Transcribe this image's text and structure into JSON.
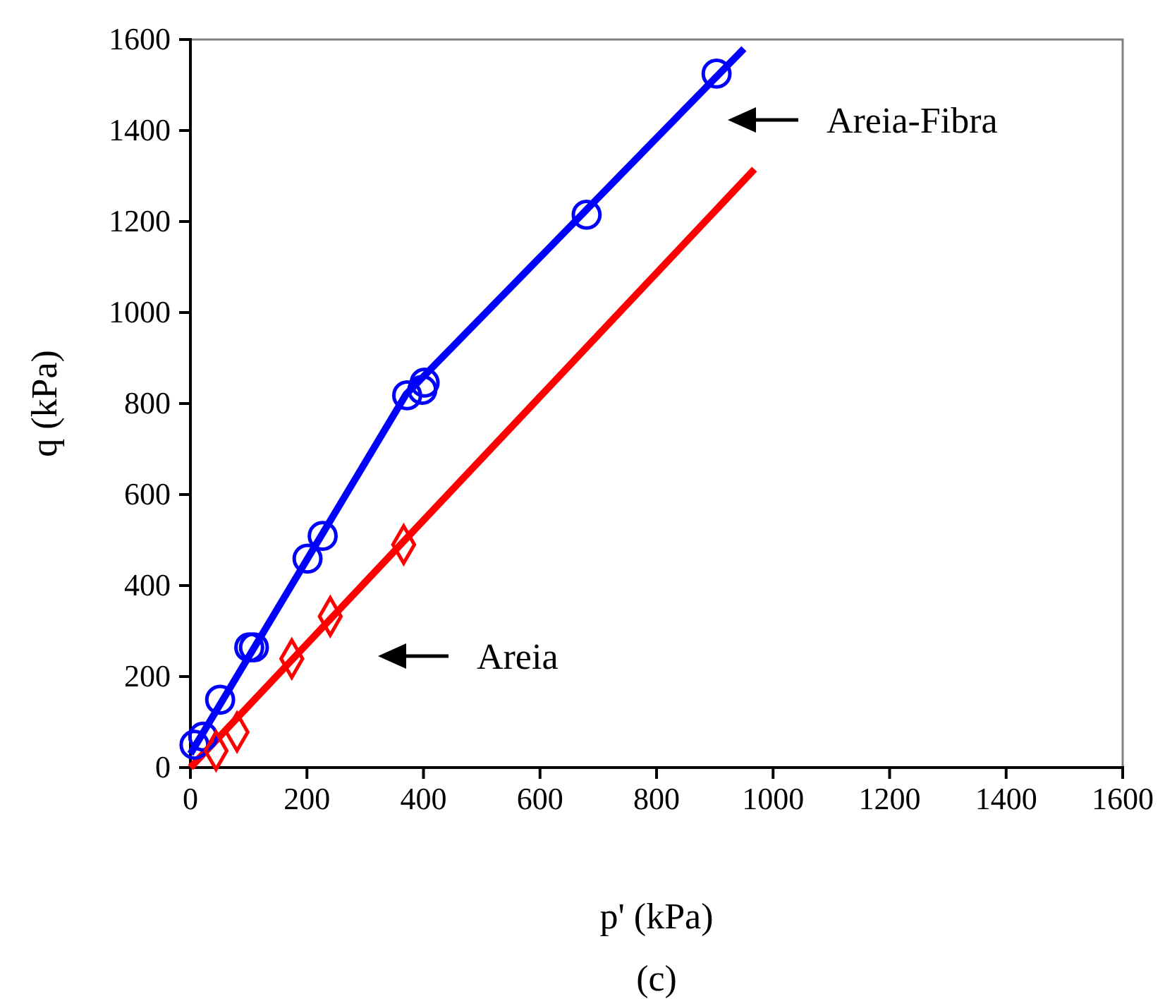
{
  "chart_data": {
    "type": "scatter",
    "xlabel": "p' (kPa)",
    "ylabel": "q (kPa)",
    "xlim": [
      0,
      1600
    ],
    "ylim": [
      0,
      1600
    ],
    "xticks": [
      0,
      200,
      400,
      600,
      800,
      1000,
      1200,
      1400,
      1600
    ],
    "yticks": [
      0,
      200,
      400,
      600,
      800,
      1000,
      1200,
      1400,
      1600
    ],
    "grid": false,
    "series": [
      {
        "type": "line",
        "color": "#0000ff",
        "marker": "none",
        "x": [
          0,
          370,
          950
        ],
        "values": [
          30,
          820,
          1580
        ]
      },
      {
        "type": "line",
        "color": "#ff0000",
        "marker": "none",
        "x": [
          0,
          968
        ],
        "values": [
          0,
          1315
        ]
      },
      {
        "color": "#0000ff",
        "marker": "circle",
        "x": [
          7,
          22,
          51,
          101,
          109,
          201,
          227,
          372,
          398,
          402,
          680,
          903
        ],
        "values": [
          50,
          68,
          149,
          264,
          264,
          459,
          509,
          818,
          830,
          846,
          1215,
          1525
        ]
      },
      {
        "color": "#ff0000",
        "marker": "diamond",
        "x": [
          44,
          80,
          174,
          240,
          366
        ],
        "values": [
          37,
          78,
          239,
          332,
          490
        ]
      }
    ],
    "annotations": [
      "Areia-Fibra",
      "Areia",
      "(c)"
    ]
  }
}
